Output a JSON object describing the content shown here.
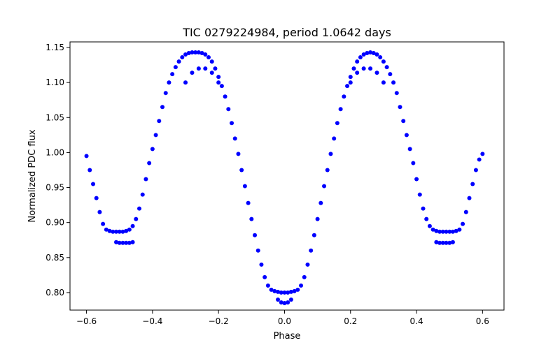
{
  "chart_data": {
    "type": "scatter",
    "title": "TIC 0279224984, period 1.0642 days",
    "xlabel": "Phase",
    "ylabel": "Normalized PDC flux",
    "xlim": [
      -0.65,
      0.665
    ],
    "ylim": [
      0.775,
      1.158
    ],
    "xticks": [
      -0.6,
      -0.4,
      -0.2,
      0.0,
      0.2,
      0.4,
      0.6
    ],
    "xtick_labels": [
      "−0.6",
      "−0.4",
      "−0.2",
      "0.0",
      "0.2",
      "0.4",
      "0.6"
    ],
    "yticks": [
      0.8,
      0.85,
      0.9,
      0.95,
      1.0,
      1.05,
      1.1,
      1.15
    ],
    "ytick_labels": [
      "0.80",
      "0.85",
      "0.90",
      "0.95",
      "1.00",
      "1.05",
      "1.10",
      "1.15"
    ],
    "grid": false,
    "marker_color": "#0000ff",
    "series": [
      {
        "x": [
          -0.6,
          -0.59,
          -0.58,
          -0.57,
          -0.56,
          -0.55,
          -0.54,
          -0.53,
          -0.52,
          -0.51,
          -0.5,
          -0.49,
          -0.48,
          -0.47,
          -0.46,
          -0.45,
          -0.44,
          -0.43,
          -0.42,
          -0.41,
          -0.4,
          -0.39,
          -0.38,
          -0.37,
          -0.36,
          -0.35,
          -0.34,
          -0.33,
          -0.32,
          -0.31,
          -0.3,
          -0.29,
          -0.28,
          -0.27,
          -0.26,
          -0.25,
          -0.24,
          -0.23,
          -0.22,
          -0.21,
          -0.2,
          -0.19,
          -0.18,
          -0.17,
          -0.16,
          -0.15,
          -0.14,
          -0.13,
          -0.12,
          -0.11,
          -0.1,
          -0.09,
          -0.08,
          -0.07,
          -0.06,
          -0.05,
          -0.04,
          -0.03,
          -0.02,
          -0.01,
          0.0,
          0.01,
          0.02,
          0.03,
          0.04,
          0.05,
          0.06,
          0.07,
          0.08,
          0.09,
          0.1,
          0.11,
          0.12,
          0.13,
          0.14,
          0.15,
          0.16,
          0.17,
          0.18,
          0.19,
          0.2,
          0.21,
          0.22,
          0.23,
          0.24,
          0.25,
          0.26,
          0.27,
          0.28,
          0.29,
          0.3,
          0.31,
          0.32,
          0.33,
          0.34,
          0.35,
          0.36,
          0.37,
          0.38,
          0.39,
          0.4,
          0.41,
          0.42,
          0.43,
          0.44,
          0.45,
          0.46,
          0.47,
          0.48,
          0.49,
          0.5,
          0.51,
          0.52,
          0.53,
          0.54,
          0.55,
          0.56,
          0.57,
          0.58,
          0.59,
          0.6
        ],
        "y": [
          0.995,
          0.975,
          0.955,
          0.935,
          0.915,
          0.898,
          0.89,
          0.888,
          0.887,
          0.887,
          0.887,
          0.887,
          0.888,
          0.89,
          0.895,
          0.905,
          0.92,
          0.94,
          0.962,
          0.985,
          1.005,
          1.025,
          1.045,
          1.065,
          1.085,
          1.1,
          1.112,
          1.122,
          1.13,
          1.136,
          1.14,
          1.142,
          1.143,
          1.143,
          1.143,
          1.142,
          1.14,
          1.136,
          1.13,
          1.12,
          1.108,
          1.095,
          1.08,
          1.062,
          1.042,
          1.02,
          0.998,
          0.975,
          0.952,
          0.928,
          0.905,
          0.882,
          0.86,
          0.84,
          0.822,
          0.81,
          0.804,
          0.802,
          0.801,
          0.8,
          0.8,
          0.8,
          0.801,
          0.802,
          0.804,
          0.81,
          0.822,
          0.84,
          0.86,
          0.882,
          0.905,
          0.928,
          0.952,
          0.975,
          0.998,
          1.02,
          1.042,
          1.062,
          1.08,
          1.095,
          1.108,
          1.12,
          1.13,
          1.136,
          1.14,
          1.142,
          1.143,
          1.142,
          1.14,
          1.136,
          1.13,
          1.122,
          1.112,
          1.1,
          1.085,
          1.065,
          1.045,
          1.025,
          1.005,
          0.985,
          0.962,
          0.94,
          0.92,
          0.905,
          0.895,
          0.89,
          0.888,
          0.887,
          0.887,
          0.887,
          0.887,
          0.887,
          0.888,
          0.89,
          0.898,
          0.915,
          0.935,
          0.955,
          0.975,
          0.99,
          0.998
        ]
      },
      {
        "x": [
          -0.51,
          -0.5,
          -0.49,
          -0.48,
          -0.47,
          -0.46,
          -0.3,
          -0.28,
          -0.26,
          -0.24,
          -0.22,
          -0.2,
          -0.02,
          -0.01,
          0.0,
          0.01,
          0.02,
          0.2,
          0.22,
          0.24,
          0.26,
          0.28,
          0.3,
          0.46,
          0.47,
          0.48,
          0.49,
          0.5,
          0.51
        ],
        "y": [
          0.872,
          0.871,
          0.871,
          0.871,
          0.871,
          0.872,
          1.1,
          1.114,
          1.12,
          1.12,
          1.114,
          1.1,
          0.79,
          0.786,
          0.785,
          0.786,
          0.79,
          1.1,
          1.114,
          1.12,
          1.12,
          1.114,
          1.1,
          0.872,
          0.871,
          0.871,
          0.871,
          0.871,
          0.872
        ]
      }
    ]
  }
}
